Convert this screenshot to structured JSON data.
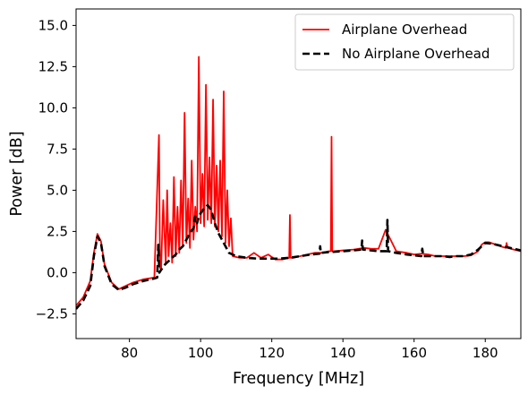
{
  "chart_data": {
    "type": "line",
    "title": "",
    "xlabel": "Frequency [MHz]",
    "ylabel": "Power [dB]",
    "xlim": [
      65,
      190
    ],
    "ylim": [
      -4,
      16
    ],
    "xticks": [
      80,
      100,
      120,
      140,
      160,
      180
    ],
    "xtick_labels": [
      "80",
      "100",
      "120",
      "140",
      "160",
      "180"
    ],
    "yticks": [
      -2.5,
      0.0,
      2.5,
      5.0,
      7.5,
      10.0,
      12.5,
      15.0
    ],
    "ytick_labels": [
      "−2.5",
      "0.0",
      "2.5",
      "5.0",
      "7.5",
      "10.0",
      "12.5",
      "15.0"
    ],
    "grid": false,
    "legend": "top-right",
    "series": [
      {
        "name": "Airplane Overhead",
        "color": "#ff0000",
        "style": "solid",
        "x": [
          65,
          67,
          69,
          70,
          71,
          72,
          73,
          75,
          77,
          79,
          81,
          84,
          87,
          88.3,
          88.6,
          88.9,
          89.5,
          90.2,
          90.6,
          91,
          91.5,
          92,
          92.5,
          93,
          93.5,
          94,
          94.5,
          95,
          95.5,
          96,
          96.5,
          97,
          97.5,
          98,
          98.5,
          99,
          99.5,
          100,
          100.5,
          101,
          101.5,
          102,
          102.5,
          103,
          103.5,
          104,
          104.5,
          105,
          105.5,
          106,
          106.5,
          107,
          107.5,
          108,
          108.5,
          109,
          111,
          113,
          115,
          117,
          119,
          121,
          123,
          124.9,
          125.1,
          125.3,
          126,
          128,
          130,
          132,
          134,
          136,
          136.6,
          136.8,
          137,
          137.4,
          140,
          143,
          146,
          148,
          150,
          152,
          155,
          158,
          160,
          162,
          164,
          166,
          168,
          170,
          172,
          174,
          176,
          178,
          179,
          180,
          181,
          183,
          185,
          185.8,
          186,
          186.3,
          188,
          190
        ],
        "y": [
          -2.0,
          -1.5,
          -0.5,
          1.2,
          2.35,
          1.9,
          0.5,
          -0.6,
          -1.0,
          -0.8,
          -0.6,
          -0.4,
          -0.3,
          8.35,
          0.3,
          0.2,
          4.4,
          0.5,
          5.0,
          1.0,
          3.0,
          0.6,
          5.8,
          1.0,
          4.0,
          1.2,
          5.6,
          1.6,
          9.7,
          1.8,
          4.5,
          1.5,
          6.8,
          2.0,
          4.0,
          2.5,
          13.1,
          3.0,
          6.0,
          2.8,
          11.4,
          3.2,
          7.0,
          3.0,
          10.5,
          2.8,
          6.5,
          2.5,
          6.8,
          2.2,
          11.0,
          1.8,
          5.0,
          1.6,
          3.3,
          1.0,
          0.9,
          0.9,
          1.2,
          0.9,
          1.1,
          0.8,
          0.8,
          0.9,
          3.5,
          0.9,
          0.9,
          1.0,
          1.1,
          1.2,
          1.2,
          1.3,
          1.3,
          8.25,
          1.3,
          1.3,
          1.35,
          1.4,
          1.5,
          1.45,
          1.45,
          2.6,
          1.3,
          1.2,
          1.1,
          1.15,
          1.1,
          1.0,
          1.0,
          1.0,
          1.0,
          1.0,
          1.05,
          1.3,
          1.7,
          1.85,
          1.85,
          1.7,
          1.55,
          1.5,
          1.8,
          1.5,
          1.4,
          1.3
        ]
      },
      {
        "name": "No Airplane Overhead",
        "color": "#000000",
        "style": "dashed",
        "x": [
          65,
          67,
          69,
          70,
          71,
          72,
          73,
          75,
          77,
          79,
          81,
          84,
          87,
          87.8,
          88.1,
          88.4,
          89,
          90,
          91,
          92,
          93,
          94,
          95,
          96,
          97,
          98,
          98.5,
          99,
          99.5,
          100,
          101,
          102,
          103,
          104,
          105,
          106,
          107,
          108,
          110,
          113,
          116,
          119,
          122,
          125,
          128,
          131,
          133.4,
          133.6,
          133.8,
          136,
          140,
          143,
          145.2,
          145.4,
          145.6,
          148,
          150,
          152.3,
          152.5,
          152.7,
          155,
          158,
          160,
          162,
          162.3,
          162.6,
          165,
          168,
          170,
          172,
          174,
          176,
          178,
          180,
          182,
          185,
          188,
          190
        ],
        "y": [
          -2.2,
          -1.7,
          -0.8,
          1.0,
          2.2,
          1.8,
          0.4,
          -0.7,
          -1.05,
          -0.9,
          -0.7,
          -0.5,
          -0.35,
          -0.3,
          1.7,
          0.0,
          0.2,
          0.5,
          0.7,
          0.9,
          1.1,
          1.4,
          1.6,
          2.0,
          2.4,
          2.7,
          3.4,
          3.0,
          3.4,
          3.6,
          3.9,
          4.1,
          3.8,
          3.0,
          2.4,
          2.0,
          1.6,
          1.2,
          1.0,
          0.9,
          0.85,
          0.85,
          0.85,
          0.9,
          1.0,
          1.1,
          1.15,
          1.6,
          1.2,
          1.25,
          1.3,
          1.35,
          1.4,
          1.95,
          1.4,
          1.35,
          1.3,
          1.3,
          3.2,
          1.3,
          1.2,
          1.1,
          1.05,
          1.0,
          1.45,
          1.0,
          1.0,
          1.0,
          0.95,
          1.0,
          1.0,
          1.1,
          1.4,
          1.8,
          1.75,
          1.6,
          1.45,
          1.35
        ]
      }
    ]
  }
}
